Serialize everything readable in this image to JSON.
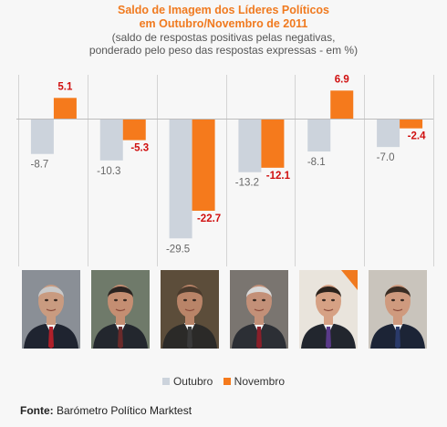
{
  "chart_data": {
    "type": "bar",
    "title_line1": "Saldo de Imagem dos Líderes Políticos",
    "title_line2": "em Outubro/Novembro de 2011",
    "subtitle_line1": "(saldo de respostas positivas pelas negativas,",
    "subtitle_line2": "ponderado pelo peso das respostas expressas - em %)",
    "series": [
      {
        "name": "Outubro",
        "values": [
          -8.7,
          -10.3,
          -29.5,
          -13.2,
          -8.1,
          -7.0
        ],
        "labels": [
          "-8.7",
          "-10.3",
          "-29.5",
          "-13.2",
          "-8.1",
          "-7.0"
        ]
      },
      {
        "name": "Novembro",
        "values": [
          5.1,
          -5.3,
          -22.7,
          -12.1,
          6.9,
          -2.4
        ],
        "labels": [
          "5.1",
          "-5.3",
          "-22.7",
          "-12.1",
          "6.9",
          "-2.4"
        ]
      }
    ],
    "ylim": [
      -31,
      10
    ],
    "grid": false,
    "legend": "bottom",
    "colors": {
      "outubro": "#ccd3dc",
      "novembro": "#f57a1c",
      "label_outubro": "#666666",
      "label_novembro": "#d01010",
      "title": "#f07a1f"
    }
  },
  "legend": {
    "outubro": "Outubro",
    "novembro": "Novembro"
  },
  "source": {
    "label": "Fonte:",
    "text": " Barómetro Político Marktest"
  },
  "photos": [
    "portrait-1",
    "portrait-2",
    "portrait-3",
    "portrait-4",
    "portrait-5",
    "portrait-6"
  ]
}
